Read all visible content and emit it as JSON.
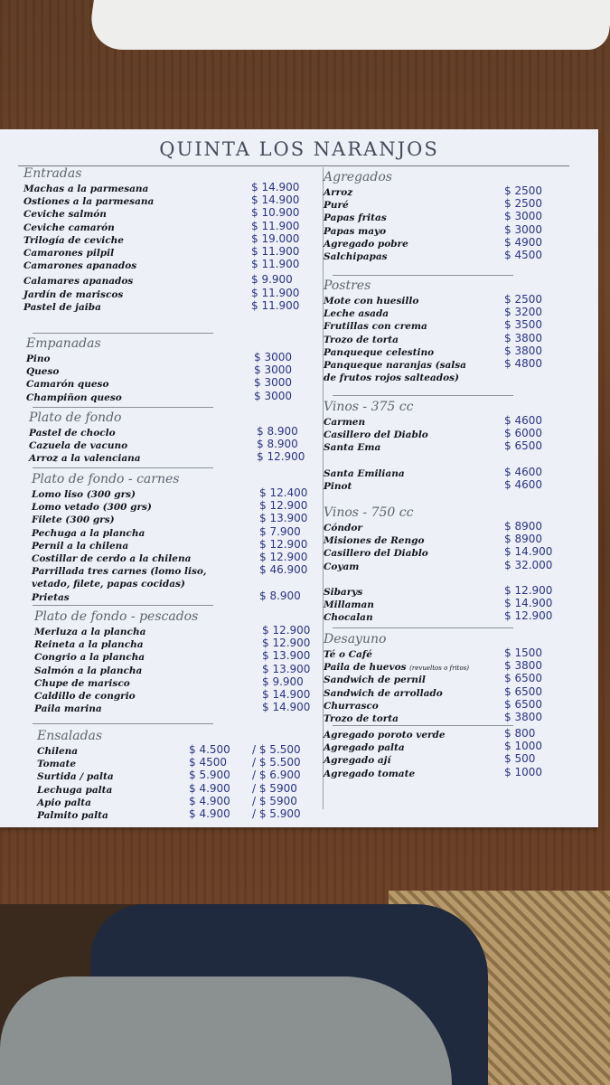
{
  "title": "QUINTA LOS NARANJOS",
  "colors": {
    "price_ink": "#2a3580",
    "paper": "#edf0f6",
    "table_wood": "#6b4128"
  },
  "left_column": [
    {
      "heading": "Entradas",
      "items": [
        {
          "name": "Machas a la parmesana",
          "price": "$ 14.900"
        },
        {
          "name": "Ostiones a la parmesana",
          "price": "$ 14.900"
        },
        {
          "name": "Ceviche salmón",
          "price": "$ 10.900"
        },
        {
          "name": "Ceviche camarón",
          "price": "$ 11.900"
        },
        {
          "name": "Trilogía de ceviche",
          "price": "$ 19.000"
        },
        {
          "name": "Camarones pilpil",
          "price": "$ 11.900"
        },
        {
          "name": "Camarones apanados",
          "price": "$ 11.900"
        },
        {
          "name": "Calamares apanados",
          "price": "$ 9.900"
        },
        {
          "name": "Jardín de mariscos",
          "price": "$ 11.900"
        },
        {
          "name": "Pastel de jaiba",
          "price": "$ 11.900"
        }
      ]
    },
    {
      "heading": "Empanadas",
      "items": [
        {
          "name": "Pino",
          "price": "$ 3000"
        },
        {
          "name": "Queso",
          "price": "$ 3000"
        },
        {
          "name": "Camarón queso",
          "price": "$ 3000"
        },
        {
          "name": "Champiñon queso",
          "price": "$ 3000"
        }
      ]
    },
    {
      "heading": "Plato de fondo",
      "items": [
        {
          "name": "Pastel de choclo",
          "price": "$ 8.900"
        },
        {
          "name": "Cazuela de vacuno",
          "price": "$ 8.900"
        },
        {
          "name": "Arroz a la valenciana",
          "price": "$ 12.900"
        }
      ]
    },
    {
      "heading": "Plato de fondo - carnes",
      "items": [
        {
          "name": "Lomo liso  (300 grs)",
          "price": "$ 12.400"
        },
        {
          "name": "Lomo vetado  (300 grs)",
          "price": "$ 12.900"
        },
        {
          "name": "Filete  (300 grs)",
          "price": "$ 13.900"
        },
        {
          "name": "Pechuga a la plancha",
          "price": "$ 7.900"
        },
        {
          "name": "Pernil a la chilena",
          "price": "$ 12.900"
        },
        {
          "name": "Costillar de cerdo a la chilena",
          "price": "$ 12.900"
        },
        {
          "name": "Parrillada tres carnes (lomo liso,",
          "price": "$ 46.900"
        },
        {
          "name": "vetado, filete, papas cocidas)",
          "price": ""
        },
        {
          "name": "Prietas",
          "price": "$ 8.900"
        }
      ]
    },
    {
      "heading": "Plato de fondo - pescados",
      "items": [
        {
          "name": "Merluza a la plancha",
          "price": "$ 12.900"
        },
        {
          "name": "Reineta a la plancha",
          "price": "$ 12.900"
        },
        {
          "name": "Congrio a la plancha",
          "price": "$ 13.900"
        },
        {
          "name": "Salmón a la plancha",
          "price": "$ 13.900"
        },
        {
          "name": "Chupe de marisco",
          "price": "$ 9.900"
        },
        {
          "name": "Caldillo de congrio",
          "price": "$ 14.900"
        },
        {
          "name": "Paila marina",
          "price": "$ 14.900"
        }
      ]
    },
    {
      "heading": "Ensaladas",
      "items": [
        {
          "name": "Chilena",
          "price": "$ 4.500",
          "price2": "/ $ 5.500"
        },
        {
          "name": "Tomate",
          "price": "$ 4500",
          "price2": "/ $ 5.500"
        },
        {
          "name": "Surtida / palta",
          "price": "$ 5.900",
          "price2": "/ $ 6.900"
        },
        {
          "name": "Lechuga palta",
          "price": "$ 4.900",
          "price2": "/ $ 5900"
        },
        {
          "name": "Apio palta",
          "price": "$ 4.900",
          "price2": "/ $ 5900"
        },
        {
          "name": "Palmito palta",
          "price": "$ 4.900",
          "price2": "/ $ 5.900"
        }
      ]
    }
  ],
  "right_column": [
    {
      "heading": "Agregados",
      "items": [
        {
          "name": "Arroz",
          "price": "$ 2500"
        },
        {
          "name": "Puré",
          "price": "$ 2500"
        },
        {
          "name": "Papas fritas",
          "price": "$ 3000"
        },
        {
          "name": "Papas mayo",
          "price": "$ 3000"
        },
        {
          "name": "Agregado pobre",
          "price": "$ 4900"
        },
        {
          "name": "Salchipapas",
          "price": "$ 4500"
        }
      ]
    },
    {
      "heading": "Postres",
      "items": [
        {
          "name": "Mote con huesillo",
          "price": "$ 2500"
        },
        {
          "name": "Leche asada",
          "price": "$ 3200"
        },
        {
          "name": "Frutillas con crema",
          "price": "$ 3500"
        },
        {
          "name": "Trozo de torta",
          "price": "$ 3800"
        },
        {
          "name": "Panqueque celestino",
          "price": "$ 3800"
        },
        {
          "name": "Panqueque naranjas (salsa",
          "price": "$ 4800"
        },
        {
          "name": "de frutos rojos salteados)",
          "price": ""
        }
      ]
    },
    {
      "heading": "Vinos - 375 cc",
      "items": [
        {
          "name": "Carmen",
          "price": "$ 4600"
        },
        {
          "name": "Casillero del Diablo",
          "price": "$ 6000"
        },
        {
          "name": "Santa Ema",
          "price": "$ 6500"
        },
        {
          "name": "",
          "price": ""
        },
        {
          "name": "Santa Emiliana",
          "price": "$ 4600"
        },
        {
          "name": "Pinot",
          "price": "$ 4600"
        }
      ]
    },
    {
      "heading": "Vinos - 750 cc",
      "items": [
        {
          "name": "Cóndor",
          "price": "$ 8900"
        },
        {
          "name": "Misiones de Rengo",
          "price": "$ 8900"
        },
        {
          "name": "Casillero del Diablo",
          "price": "$ 14.900"
        },
        {
          "name": "Coyam",
          "price": "$ 32.000"
        },
        {
          "name": "",
          "price": ""
        },
        {
          "name": "Sibarys",
          "price": "$ 12.900"
        },
        {
          "name": "Millaman",
          "price": "$ 14.900"
        },
        {
          "name": "Chocalan",
          "price": "$ 12.900"
        }
      ]
    },
    {
      "heading": "Desayuno",
      "items": [
        {
          "name": "Té o Café",
          "price": "$ 1500"
        },
        {
          "name": "Paila de huevos",
          "note": "(revueltos o fritos)",
          "price": "$ 3800"
        },
        {
          "name": "Sandwich de pernil",
          "price": "$ 6500"
        },
        {
          "name": "Sandwich de arrollado",
          "price": "$ 6500"
        },
        {
          "name": "Churrasco",
          "price": "$ 6500"
        },
        {
          "name": "Trozo de torta",
          "price": "$ 3800"
        }
      ]
    },
    {
      "heading": "",
      "items": [
        {
          "name": "Agregado poroto verde",
          "price": "$ 800"
        },
        {
          "name": "Agregado palta",
          "price": "$ 1000"
        },
        {
          "name": "Agregado ají",
          "price": "$ 500"
        },
        {
          "name": "Agregado tomate",
          "price": "$ 1000"
        }
      ]
    }
  ]
}
